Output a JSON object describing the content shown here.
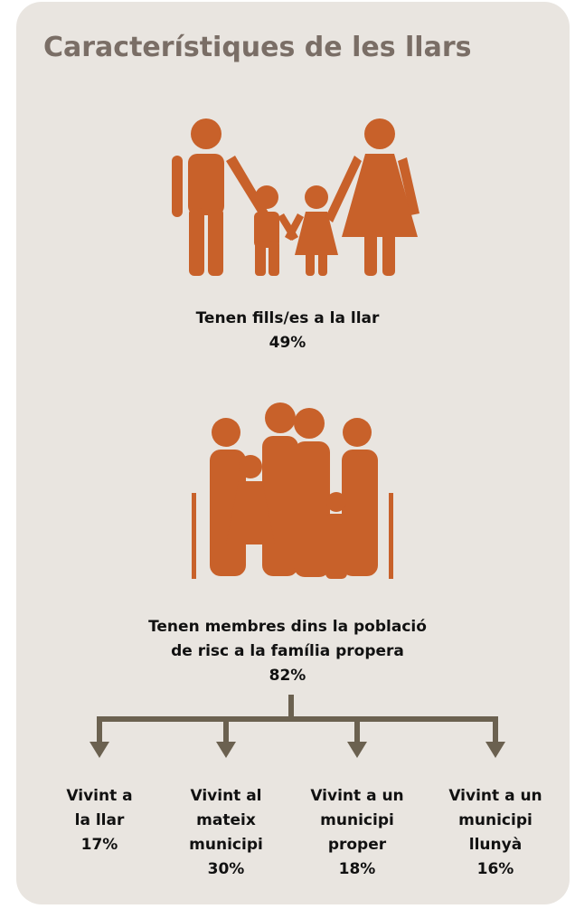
{
  "title": "Característiques de les llars",
  "children": {
    "label": "Tenen fills/es a la llar",
    "value": "49%"
  },
  "risk": {
    "lines": [
      "Tenen membres dins la població",
      "de risc a la família propera"
    ],
    "value": "82%"
  },
  "branches": [
    {
      "lines": [
        "Vivint a",
        "la llar"
      ],
      "value": "17%"
    },
    {
      "lines": [
        "Vivint al",
        "mateix",
        "municipi"
      ],
      "value": "30%"
    },
    {
      "lines": [
        "Vivint a un",
        "municipi",
        "proper"
      ],
      "value": "18%"
    },
    {
      "lines": [
        "Vivint a un",
        "municipi",
        "llunyà"
      ],
      "value": "16%"
    }
  ]
}
